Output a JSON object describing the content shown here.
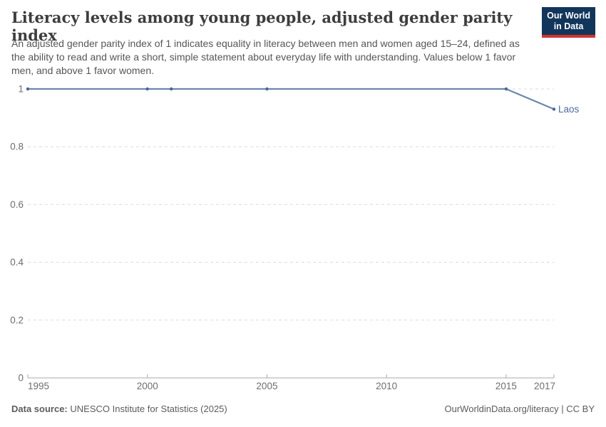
{
  "header": {
    "title": "Literacy levels among young people, adjusted gender parity index",
    "subtitle": "An adjusted gender parity index of 1 indicates equality in literacy between men and women aged 15–24, defined as the ability to read and write a short, simple statement about everyday life with understanding. Values below 1 favor men, and above 1 favor women.",
    "logo": {
      "line1": "Our World",
      "line2": "in Data",
      "bg_color": "#12355b",
      "accent_color": "#d0342c"
    }
  },
  "chart_data": {
    "type": "line",
    "title": "Literacy levels among young people, adjusted gender parity index",
    "series": [
      {
        "name": "Laos",
        "color": "#4c6a9c",
        "x": [
          1995,
          2000,
          2001,
          2005,
          2015,
          2017
        ],
        "values": [
          1,
          1,
          1,
          1,
          1,
          0.93
        ]
      }
    ],
    "x_ticks": [
      1995,
      2000,
      2005,
      2010,
      2015,
      2017
    ],
    "x_tick_labels": [
      "1995",
      "2000",
      "2005",
      "2010",
      "2015",
      "2017"
    ],
    "y_ticks": [
      0,
      0.2,
      0.4,
      0.6,
      0.8,
      1
    ],
    "y_tick_labels": [
      "0",
      "0.2",
      "0.4",
      "0.6",
      "0.8",
      "1"
    ],
    "xlim": [
      1995,
      2017
    ],
    "ylim": [
      0,
      1
    ],
    "grid": "horizontal dashed",
    "legend_position": "end-of-line label",
    "line_color": "#6d87ac",
    "marker_color": "#47659c",
    "grid_color": "#dcdcdc",
    "axis_color": "#a8a8a8"
  },
  "footer": {
    "source_label": "Data source:",
    "source_value": "UNESCO Institute for Statistics (2025)",
    "link_text": "OurWorldinData.org/literacy | CC BY"
  }
}
